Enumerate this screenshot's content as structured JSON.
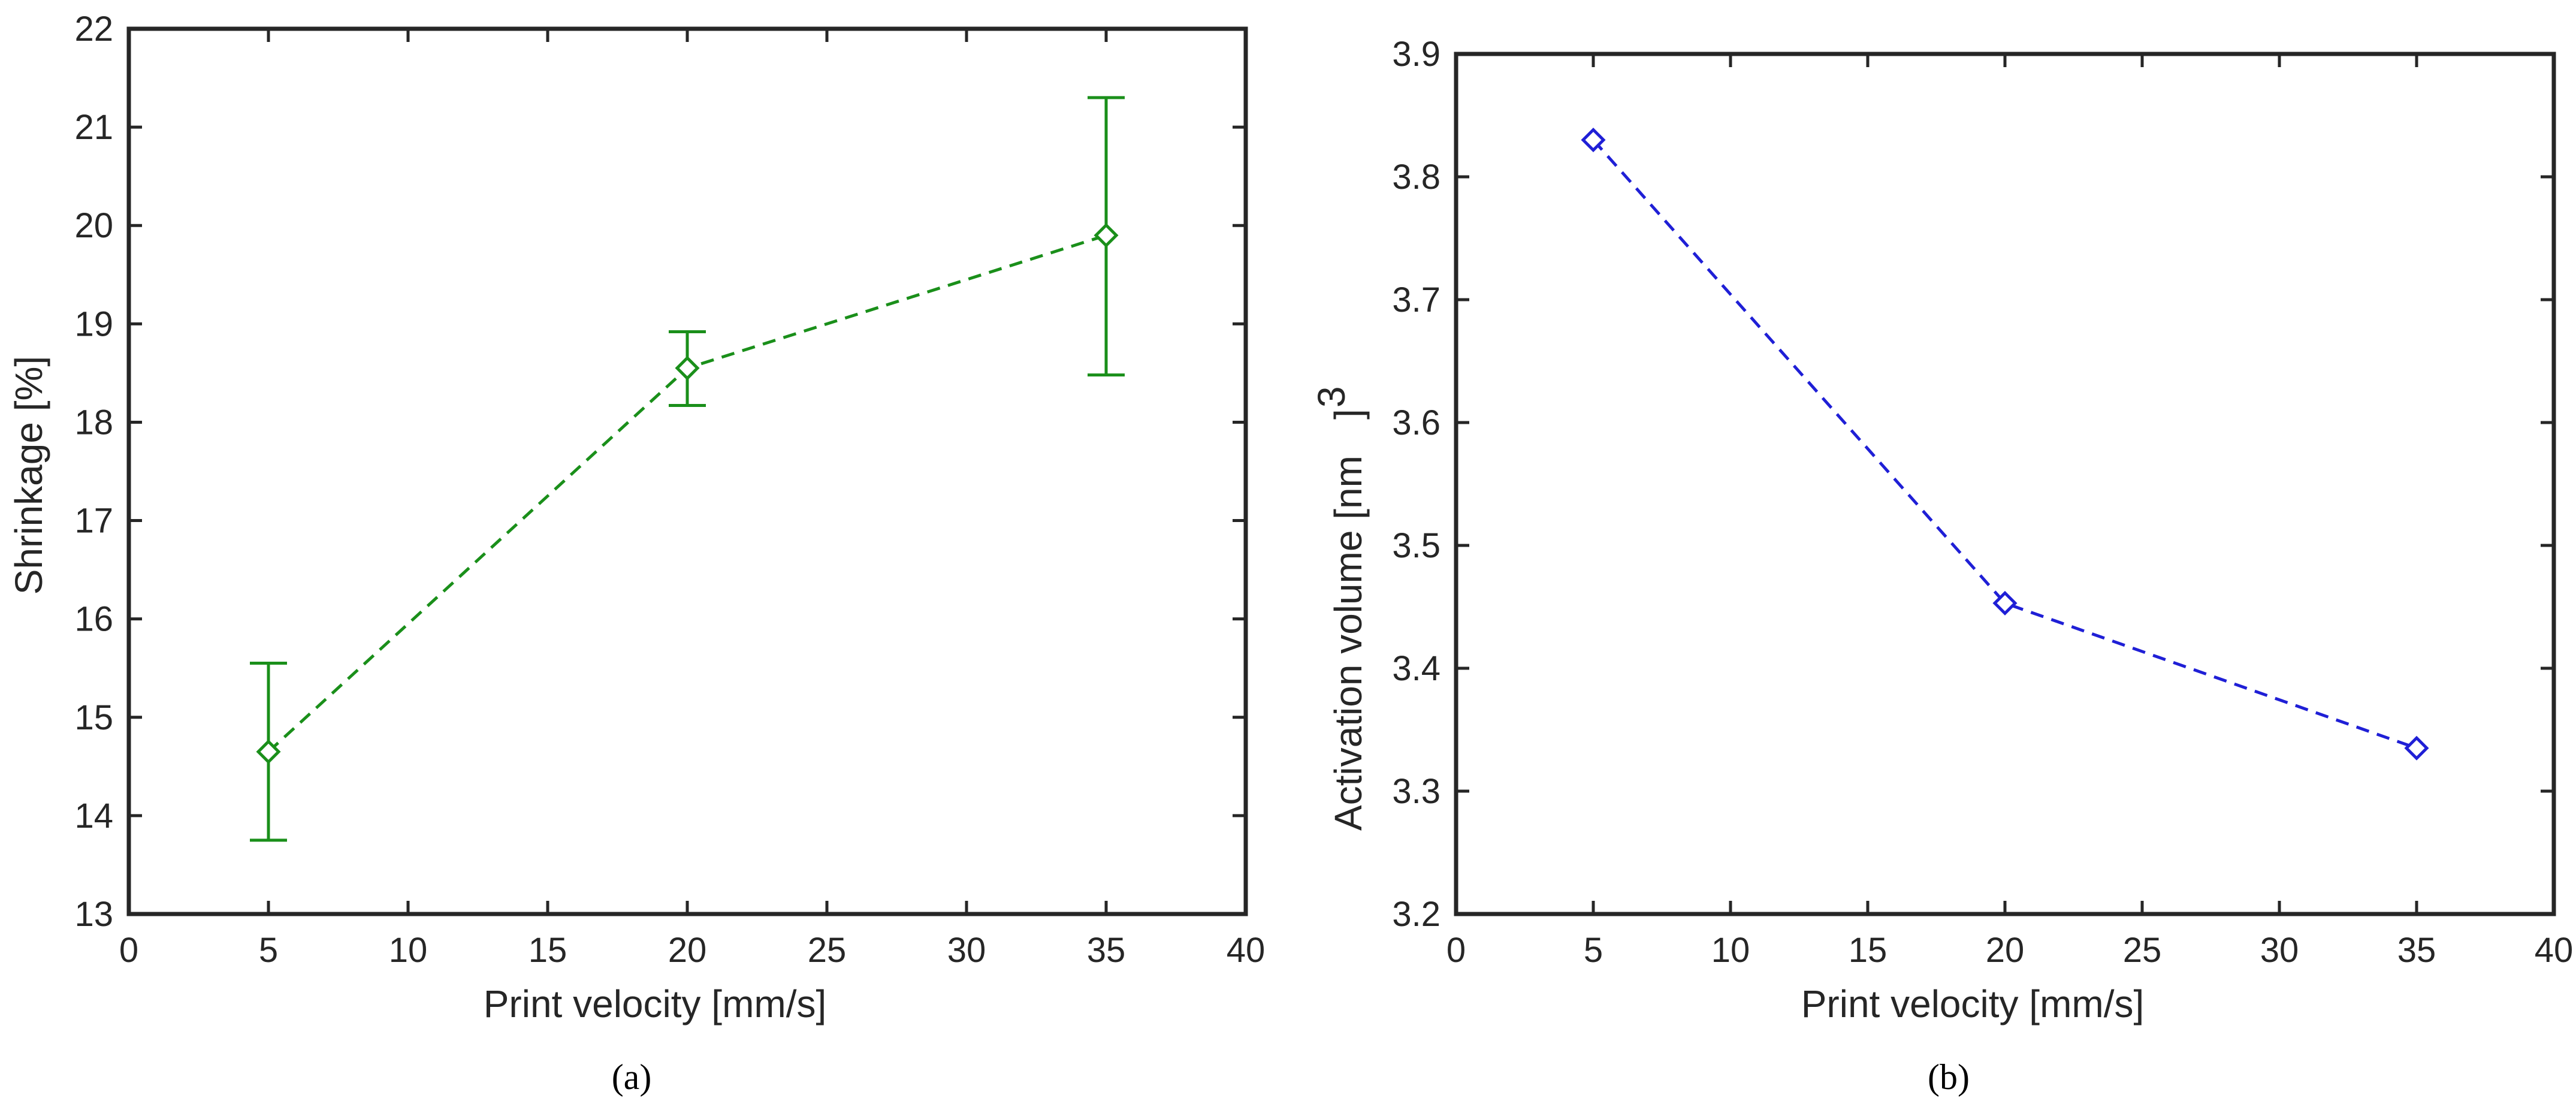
{
  "chart_data": [
    {
      "type": "line",
      "caption": "(a)",
      "xlabel": "Print velocity [mm/s]",
      "ylabel": "Shrinkage [%]",
      "xlim": [
        0,
        40
      ],
      "ylim": [
        13,
        22
      ],
      "xticks": [
        0,
        5,
        10,
        15,
        20,
        25,
        30,
        35,
        40
      ],
      "yticks": [
        13,
        14,
        15,
        16,
        17,
        18,
        19,
        20,
        21,
        22
      ],
      "grid": false,
      "series": [
        {
          "name": "Shrinkage",
          "color": "#1a8f1a",
          "line_style": "dashed",
          "marker": "diamond",
          "x": [
            5,
            20,
            35
          ],
          "y": [
            14.65,
            18.55,
            19.9
          ],
          "error_lower": [
            13.75,
            18.17,
            18.48
          ],
          "error_upper": [
            15.55,
            18.92,
            21.3
          ]
        }
      ]
    },
    {
      "type": "line",
      "caption": "(b)",
      "xlabel": "Print velocity [mm/s]",
      "ylabel": "Activation volume [nm",
      "ylabel_superscript": "3",
      "ylabel_close": "]",
      "xlim": [
        0,
        40
      ],
      "ylim": [
        3.2,
        3.9
      ],
      "xticks": [
        0,
        5,
        10,
        15,
        20,
        25,
        30,
        35,
        40
      ],
      "yticks": [
        3.2,
        3.3,
        3.4,
        3.5,
        3.6,
        3.7,
        3.8,
        3.9
      ],
      "grid": false,
      "series": [
        {
          "name": "Activation volume",
          "color": "#1f1fd6",
          "line_style": "dashed",
          "marker": "diamond",
          "x": [
            5,
            20,
            35
          ],
          "y": [
            3.83,
            3.453,
            3.335
          ]
        }
      ]
    }
  ]
}
